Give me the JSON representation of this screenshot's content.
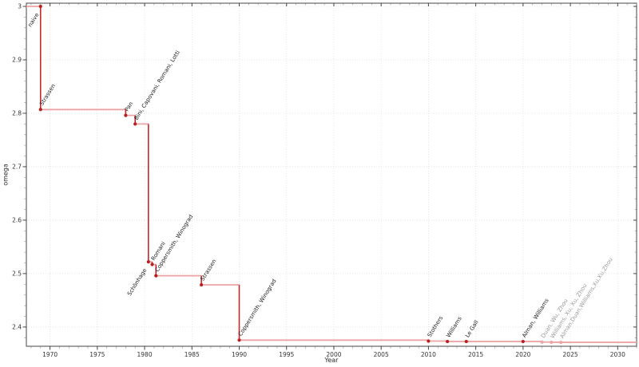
{
  "chart_data": {
    "type": "line",
    "step": "post",
    "xlabel": "Year",
    "ylabel": "omega",
    "xlim": [
      1967.5,
      2032.0
    ],
    "ylim": [
      2.364,
      3.006
    ],
    "grid": true,
    "x_ticks": [
      1970,
      1975,
      1980,
      1985,
      1990,
      1995,
      2000,
      2005,
      2010,
      2015,
      2020,
      2025,
      2030
    ],
    "x_minor_step": 1,
    "y_ticks": [
      {
        "v": 3.0,
        "label": "3"
      },
      {
        "v": 2.9,
        "label": "2.9"
      },
      {
        "v": 2.8,
        "label": "2.8"
      },
      {
        "v": 2.7,
        "label": "2.7"
      },
      {
        "v": 2.6,
        "label": "2.6"
      },
      {
        "v": 2.5,
        "label": "2.5"
      },
      {
        "v": 2.4,
        "label": "2.4"
      }
    ],
    "y_minor_step": 0.02,
    "colors": {
      "drop_line": "#c52828",
      "plateau_line": "#eda4a4",
      "marker": "#bb1e1e",
      "muted_marker": "#eda4a4",
      "label": "#222222",
      "muted_label": "#9a9a9a",
      "frame": "#444444",
      "tick": "#444444",
      "minor_tick": "#888888",
      "tick_label": "#333333",
      "gridline": "#dedede"
    },
    "points": [
      {
        "year": 1969.0,
        "omega": 3.0,
        "label": "naive",
        "label_side": "below",
        "muted": false
      },
      {
        "year": 1969.0,
        "omega": 2.807,
        "label": "Strassen",
        "label_side": "above",
        "muted": false
      },
      {
        "year": 1978.0,
        "omega": 2.796,
        "label": "Pan",
        "label_side": "above",
        "muted": false
      },
      {
        "year": 1979.0,
        "omega": 2.78,
        "label": "Bini, Capovani, Romani, Lotti",
        "label_side": "above",
        "muted": false
      },
      {
        "year": 1980.4,
        "omega": 2.522,
        "label": "Schönhage",
        "label_side": "below",
        "muted": false
      },
      {
        "year": 1980.8,
        "omega": 2.517,
        "label": "Romani",
        "label_side": "above",
        "muted": false
      },
      {
        "year": 1981.2,
        "omega": 2.496,
        "label": "Coppersmith, Winograd",
        "label_side": "above",
        "muted": false
      },
      {
        "year": 1986.0,
        "omega": 2.479,
        "label": "Strassen",
        "label_side": "above",
        "muted": false
      },
      {
        "year": 1990.0,
        "omega": 2.3755,
        "label": "Coppersmith, Winograd",
        "label_side": "above",
        "muted": false
      },
      {
        "year": 2010.0,
        "omega": 2.3737,
        "label": "Stothers",
        "label_side": "above",
        "muted": false
      },
      {
        "year": 2012.0,
        "omega": 2.3729,
        "label": "Williams",
        "label_side": "above",
        "muted": false
      },
      {
        "year": 2014.0,
        "omega": 2.3728639,
        "label": "Le Gall",
        "label_side": "above",
        "muted": false
      },
      {
        "year": 2020.0,
        "omega": 2.3728596,
        "label": "Alman, Williams",
        "label_side": "above",
        "muted": false
      },
      {
        "year": 2022.0,
        "omega": 2.371866,
        "label": "Duan, Wu, Zhou",
        "label_side": "above",
        "muted": true
      },
      {
        "year": 2023.0,
        "omega": 2.371552,
        "label": "Williams, Xu, Xu, Zhou",
        "label_side": "above",
        "muted": true
      },
      {
        "year": 2024.0,
        "omega": 2.371339,
        "label": "Alman,Duan,Williams,Xu,Xu,Zhou",
        "label_side": "above",
        "muted": true
      }
    ]
  }
}
